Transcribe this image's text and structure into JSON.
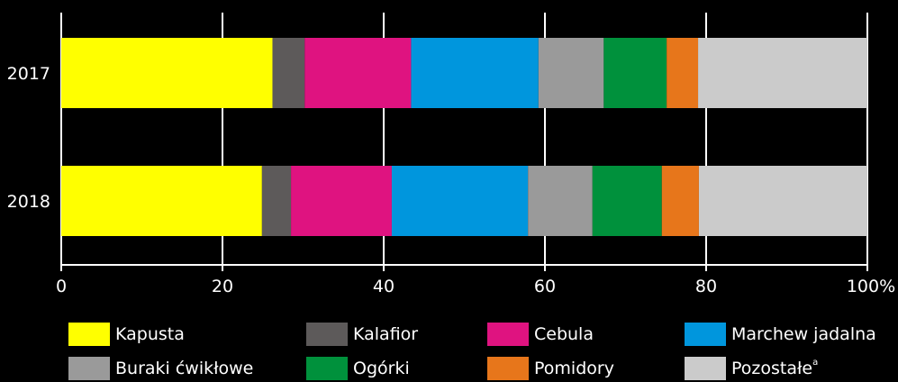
{
  "chart_data": {
    "type": "bar",
    "orientation": "horizontal",
    "stacked": true,
    "categories": [
      "2017",
      "2018"
    ],
    "series": [
      {
        "name": "Kapusta",
        "color": "#ffff00",
        "values": [
          26.2,
          24.9
        ]
      },
      {
        "name": "Kalafior",
        "color": "#5d5a5a",
        "values": [
          4.0,
          3.6
        ]
      },
      {
        "name": "Cebula",
        "color": "#df1380",
        "values": [
          13.2,
          12.5
        ]
      },
      {
        "name": "Marchew jadalna",
        "color": "#0096dd",
        "values": [
          15.8,
          16.9
        ]
      },
      {
        "name": "Buraki ćwikłowe",
        "color": "#9a9a9a",
        "values": [
          8.1,
          8.0
        ]
      },
      {
        "name": "Ogórki",
        "color": "#00913c",
        "values": [
          7.8,
          8.6
        ]
      },
      {
        "name": "Pomidory",
        "color": "#e7761b",
        "values": [
          3.9,
          4.6
        ]
      },
      {
        "name": "Pozostałe",
        "note": "a",
        "color": "#cbcbcb",
        "values": [
          21.0,
          20.9
        ]
      }
    ],
    "xlim": [
      0,
      100
    ],
    "x_ticks": [
      "0",
      "20",
      "40",
      "60",
      "80",
      "100%"
    ],
    "grid": true,
    "legend_position": "bottom"
  }
}
